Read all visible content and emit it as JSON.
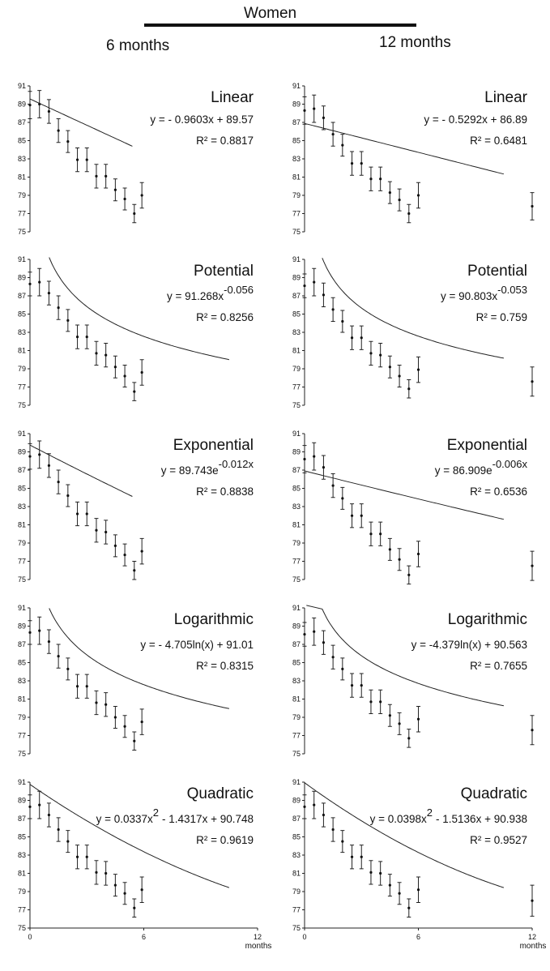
{
  "header": {
    "title": "Women",
    "left_label": "6 months",
    "right_label": "12 months"
  },
  "x_axis": {
    "tick_labels": [
      "0",
      "6",
      "12"
    ],
    "unit": "months"
  },
  "chart_data": [
    {
      "type": "scatter",
      "title": "Linear",
      "equation": "y = - 0.9603x + 89.57",
      "r2": "R² = 0.8817",
      "ylim": [
        75,
        91
      ],
      "yticks": [
        75,
        77,
        79,
        81,
        83,
        85,
        87,
        89,
        91
      ],
      "xlim": [
        0,
        12
      ],
      "x": [
        0,
        0.5,
        1,
        1.5,
        2,
        2.5,
        3,
        3.5,
        4,
        4.5,
        5,
        5.5
      ],
      "y": [
        88.9,
        89.0,
        88.2,
        86.1,
        84.9,
        82.9,
        82.9,
        81.1,
        81.1,
        79.6,
        78.6,
        77.0
      ],
      "errors": [
        1.5,
        1.5,
        1.3,
        1.3,
        1.2,
        1.3,
        1.3,
        1.3,
        1.3,
        1.2,
        1.2,
        1.0
      ],
      "extra_points": [
        {
          "x": 5.9,
          "y": 79.0,
          "error": 1.4
        }
      ],
      "fit": {
        "kind": "linear",
        "a": -0.9603,
        "b": 89.57
      }
    },
    {
      "type": "scatter",
      "title": "Linear",
      "equation": "y = - 0.5292x + 86.89",
      "r2": "R² = 0.6481",
      "ylim": [
        75,
        91
      ],
      "yticks": [
        75,
        77,
        79,
        81,
        83,
        85,
        87,
        89,
        91
      ],
      "xlim": [
        0,
        12
      ],
      "x": [
        0,
        0.5,
        1,
        1.5,
        2,
        2.5,
        3,
        3.5,
        4,
        4.5,
        5,
        5.5
      ],
      "y": [
        88.3,
        88.5,
        87.5,
        85.7,
        84.5,
        82.5,
        82.5,
        80.8,
        80.8,
        79.3,
        78.5,
        77.0
      ],
      "errors": [
        1.5,
        1.5,
        1.3,
        1.3,
        1.2,
        1.3,
        1.3,
        1.3,
        1.3,
        1.2,
        1.2,
        1.0
      ],
      "extra_points": [
        {
          "x": 6.0,
          "y": 79.0,
          "error": 1.4
        },
        {
          "x": 12.0,
          "y": 77.8,
          "error": 1.5
        }
      ],
      "fit": {
        "kind": "linear",
        "a": -0.5292,
        "b": 86.89
      }
    },
    {
      "type": "scatter",
      "title": "Potential",
      "equation": "y = 91.268x",
      "exponent": "-0.056",
      "r2": "R² = 0.8256",
      "ylim": [
        75,
        91
      ],
      "yticks": [
        75,
        77,
        79,
        81,
        83,
        85,
        87,
        89,
        91
      ],
      "xlim": [
        0,
        12
      ],
      "x": [
        0,
        0.5,
        1,
        1.5,
        2,
        2.5,
        3,
        3.5,
        4,
        4.5,
        5,
        5.5
      ],
      "y": [
        88.3,
        88.5,
        87.3,
        85.7,
        84.3,
        82.5,
        82.5,
        80.7,
        80.5,
        79.2,
        78.2,
        76.5
      ],
      "errors": [
        1.3,
        1.5,
        1.3,
        1.3,
        1.2,
        1.3,
        1.3,
        1.3,
        1.3,
        1.2,
        1.2,
        1.0
      ],
      "extra_points": [
        {
          "x": 5.9,
          "y": 78.6,
          "error": 1.4
        }
      ],
      "fit": {
        "kind": "power",
        "a": 91.268,
        "b": -0.056
      }
    },
    {
      "type": "scatter",
      "title": "Potential",
      "equation": "y = 90.803x",
      "exponent": "-0.053",
      "r2": "R² = 0.759",
      "ylim": [
        75,
        91
      ],
      "yticks": [
        75,
        77,
        79,
        81,
        83,
        85,
        87,
        89,
        91
      ],
      "xlim": [
        0,
        12
      ],
      "x": [
        0,
        0.5,
        1,
        1.5,
        2,
        2.5,
        3,
        3.5,
        4,
        4.5,
        5,
        5.5
      ],
      "y": [
        88.1,
        88.5,
        87.1,
        85.5,
        84.2,
        82.4,
        82.4,
        80.7,
        80.5,
        79.2,
        78.2,
        76.8
      ],
      "errors": [
        1.3,
        1.5,
        1.3,
        1.3,
        1.2,
        1.3,
        1.3,
        1.3,
        1.3,
        1.2,
        1.2,
        1.0
      ],
      "extra_points": [
        {
          "x": 6.0,
          "y": 78.9,
          "error": 1.4
        },
        {
          "x": 12.0,
          "y": 77.6,
          "error": 1.6
        }
      ],
      "fit": {
        "kind": "power",
        "a": 90.803,
        "b": -0.053
      }
    },
    {
      "type": "scatter",
      "title": "Exponential",
      "equation": "y = 89.743e",
      "exponent": "-0.012x",
      "r2": "R² = 0.8838",
      "ylim": [
        75,
        91
      ],
      "yticks": [
        75,
        77,
        79,
        81,
        83,
        85,
        87,
        89,
        91
      ],
      "xlim": [
        0,
        12
      ],
      "x": [
        0,
        0.5,
        1,
        1.5,
        2,
        2.5,
        3,
        3.5,
        4,
        4.5,
        5,
        5.5
      ],
      "y": [
        88.5,
        88.7,
        87.5,
        85.7,
        84.2,
        82.2,
        82.2,
        80.4,
        80.2,
        78.7,
        77.7,
        76.0
      ],
      "errors": [
        1.4,
        1.5,
        1.3,
        1.3,
        1.2,
        1.3,
        1.3,
        1.3,
        1.3,
        1.2,
        1.2,
        1.0
      ],
      "extra_points": [
        {
          "x": 5.9,
          "y": 78.1,
          "error": 1.4
        }
      ],
      "fit": {
        "kind": "exponential",
        "a": 89.743,
        "b": -0.012
      }
    },
    {
      "type": "scatter",
      "title": "Exponential",
      "equation": "y = 86.909e",
      "exponent": "-0.006x",
      "r2": "R² = 0.6536",
      "ylim": [
        75,
        91
      ],
      "yticks": [
        75,
        77,
        79,
        81,
        83,
        85,
        87,
        89,
        91
      ],
      "xlim": [
        0,
        12
      ],
      "x": [
        0,
        0.5,
        1,
        1.5,
        2,
        2.5,
        3,
        3.5,
        4,
        4.5,
        5,
        5.5
      ],
      "y": [
        88.2,
        88.5,
        87.3,
        85.3,
        83.9,
        82.0,
        82.0,
        80.0,
        80.0,
        78.3,
        77.2,
        75.5
      ],
      "errors": [
        1.5,
        1.5,
        1.3,
        1.3,
        1.2,
        1.3,
        1.3,
        1.3,
        1.3,
        1.2,
        1.2,
        1.0
      ],
      "extra_points": [
        {
          "x": 6.0,
          "y": 77.8,
          "error": 1.4
        },
        {
          "x": 12.0,
          "y": 76.5,
          "error": 1.6
        }
      ],
      "fit": {
        "kind": "exponential",
        "a": 86.909,
        "b": -0.006
      }
    },
    {
      "type": "scatter",
      "title": "Logarithmic",
      "equation": "y = - 4.705ln(x) + 91.01",
      "r2": "R² = 0.8315",
      "ylim": [
        75,
        91
      ],
      "yticks": [
        75,
        77,
        79,
        81,
        83,
        85,
        87,
        89,
        91
      ],
      "xlim": [
        0,
        12
      ],
      "x": [
        0,
        0.5,
        1,
        1.5,
        2,
        2.5,
        3,
        3.5,
        4,
        4.5,
        5,
        5.5
      ],
      "y": [
        88.3,
        88.5,
        87.3,
        85.7,
        84.3,
        82.4,
        82.4,
        80.6,
        80.4,
        79.0,
        78.0,
        76.4
      ],
      "errors": [
        1.3,
        1.5,
        1.3,
        1.3,
        1.2,
        1.3,
        1.3,
        1.3,
        1.3,
        1.2,
        1.2,
        1.0
      ],
      "extra_points": [
        {
          "x": 5.9,
          "y": 78.5,
          "error": 1.4
        }
      ],
      "fit": {
        "kind": "logarithmic",
        "a": -4.705,
        "b": 91.01
      }
    },
    {
      "type": "scatter",
      "title": "Logarithmic",
      "equation": "y = -4.379ln(x) + 90.563",
      "r2": "R² = 0.7655",
      "ylim": [
        75,
        91
      ],
      "yticks": [
        75,
        77,
        79,
        81,
        83,
        85,
        87,
        89,
        91
      ],
      "xlim": [
        0,
        12
      ],
      "x": [
        0,
        0.5,
        1,
        1.5,
        2,
        2.5,
        3,
        3.5,
        4,
        4.5,
        5,
        5.5
      ],
      "y": [
        88.1,
        88.4,
        87.2,
        85.6,
        84.3,
        82.5,
        82.5,
        80.7,
        80.7,
        79.2,
        78.3,
        76.7
      ],
      "errors": [
        1.3,
        1.5,
        1.3,
        1.3,
        1.2,
        1.3,
        1.3,
        1.3,
        1.3,
        1.2,
        1.2,
        1.0
      ],
      "extra_points": [
        {
          "x": 6.0,
          "y": 78.8,
          "error": 1.4
        },
        {
          "x": 12.0,
          "y": 77.6,
          "error": 1.6
        }
      ],
      "fit": {
        "kind": "logarithmic",
        "a": -4.379,
        "b": 90.563
      }
    },
    {
      "type": "scatter",
      "title": "Quadratic",
      "equation": "y = 0.0337x",
      "exponent": "2",
      "equation_rest": "- 1.4317x + 90.748",
      "r2": "R² = 0.9619",
      "ylim": [
        75,
        91
      ],
      "yticks": [
        75,
        77,
        79,
        81,
        83,
        85,
        87,
        89,
        91
      ],
      "xlim": [
        0,
        12
      ],
      "xticks": [
        0,
        6,
        12
      ],
      "x": [
        0,
        0.5,
        1,
        1.5,
        2,
        2.5,
        3,
        3.5,
        4,
        4.5,
        5,
        5.5
      ],
      "y": [
        88.3,
        88.5,
        87.4,
        85.8,
        84.5,
        82.8,
        82.8,
        81.1,
        81.0,
        79.7,
        78.8,
        77.2
      ],
      "errors": [
        1.3,
        1.5,
        1.3,
        1.3,
        1.2,
        1.3,
        1.3,
        1.3,
        1.3,
        1.2,
        1.2,
        1.0
      ],
      "extra_points": [
        {
          "x": 5.9,
          "y": 79.2,
          "error": 1.4
        }
      ],
      "fit": {
        "kind": "quadratic",
        "a": 0.0337,
        "b": -1.4317,
        "c": 90.748
      }
    },
    {
      "type": "scatter",
      "title": "Quadratic",
      "equation": "y = 0.0398x",
      "exponent": "2",
      "equation_rest": "- 1.5136x + 90.938",
      "r2": "R² = 0.9527",
      "ylim": [
        75,
        91
      ],
      "yticks": [
        75,
        77,
        79,
        81,
        83,
        85,
        87,
        89,
        91
      ],
      "xlim": [
        0,
        12
      ],
      "xticks": [
        0,
        6,
        12
      ],
      "x": [
        0,
        0.5,
        1,
        1.5,
        2,
        2.5,
        3,
        3.5,
        4,
        4.5,
        5,
        5.5
      ],
      "y": [
        88.3,
        88.5,
        87.4,
        85.8,
        84.5,
        82.8,
        82.8,
        81.1,
        81.0,
        79.7,
        78.8,
        77.2
      ],
      "errors": [
        1.3,
        1.5,
        1.3,
        1.3,
        1.2,
        1.3,
        1.3,
        1.3,
        1.3,
        1.2,
        1.2,
        1.0
      ],
      "extra_points": [
        {
          "x": 6.0,
          "y": 79.2,
          "error": 1.4
        },
        {
          "x": 12.0,
          "y": 78.0,
          "error": 1.7
        }
      ],
      "fit": {
        "kind": "quadratic",
        "a": 0.0398,
        "b": -1.5136,
        "c": 90.938
      }
    }
  ]
}
